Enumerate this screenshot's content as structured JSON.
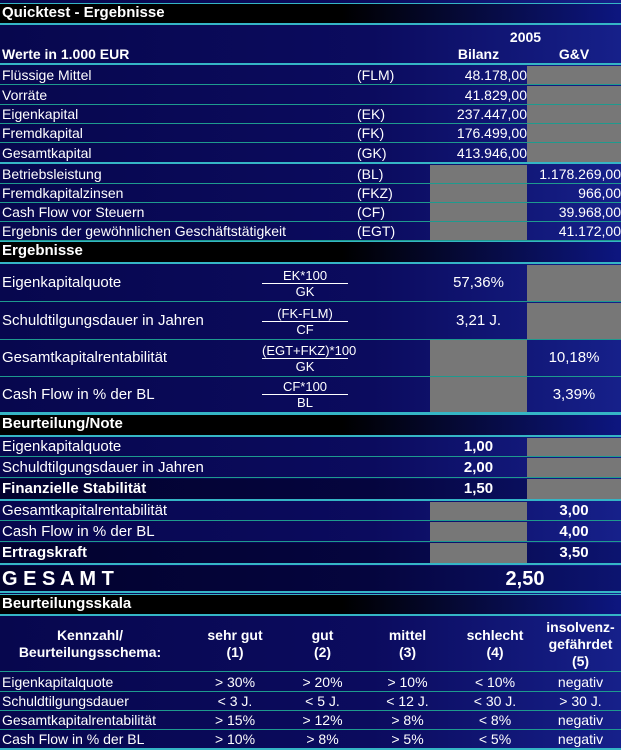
{
  "title": "Quicktest - Ergebnisse",
  "year": "2005",
  "units_label": "Werte in 1.000 EUR",
  "col_bilanz": "Bilanz",
  "col_guv": "G&V",
  "inputs": [
    {
      "label": "Flüssige Mittel",
      "abbr": "(FLM)",
      "bilanz": "48.178,00"
    },
    {
      "label": "Vorräte",
      "abbr": "",
      "bilanz": "41.829,00"
    },
    {
      "label": "Eigenkapital",
      "abbr": "(EK)",
      "bilanz": "237.447,00"
    },
    {
      "label": "Fremdkapital",
      "abbr": "(FK)",
      "bilanz": "176.499,00"
    },
    {
      "label": "Gesamtkapital",
      "abbr": "(GK)",
      "bilanz": "413.946,00"
    },
    {
      "label": "Betriebsleistung",
      "abbr": "(BL)",
      "guv": "1.178.269,00"
    },
    {
      "label": "Fremdkapitalzinsen",
      "abbr": "(FKZ)",
      "guv": "966,00"
    },
    {
      "label": "Cash Flow vor Steuern",
      "abbr": "(CF)",
      "guv": "39.968,00"
    },
    {
      "label": "Ergebnis der gewöhnlichen Geschäftstätigkeit",
      "abbr": "(EGT)",
      "guv": "41.172,00"
    }
  ],
  "ergebnisse_title": "Ergebnisse",
  "ergebnisse": [
    {
      "label": "Eigenkapitalquote",
      "num": "EK*100",
      "den": "GK",
      "bilanz": "57,36%"
    },
    {
      "label": "Schuldtilgungsdauer in Jahren",
      "num": "(FK-FLM)",
      "den": "CF",
      "bilanz": "3,21 J."
    },
    {
      "label": "Gesamtkapitalrentabilität",
      "num": "(EGT+FKZ)*100",
      "den": "GK",
      "guv": "10,18%"
    },
    {
      "label": "Cash Flow in % der BL",
      "num": "CF*100",
      "den": "BL",
      "guv": "3,39%"
    }
  ],
  "beurteilung_title": "Beurteilung/Note",
  "beurteilung": [
    {
      "label": "Eigenkapitalquote",
      "bilanz": "1,00"
    },
    {
      "label": "Schuldtilgungsdauer in Jahren",
      "bilanz": "2,00"
    },
    {
      "label": "Finanzielle Stabilität",
      "bilanz": "1,50"
    },
    {
      "label": "Gesamtkapitalrentabilität",
      "guv": "3,00"
    },
    {
      "label": "Cash Flow in % der BL",
      "guv": "4,00"
    },
    {
      "label": "Ertragskraft",
      "guv": "3,50"
    }
  ],
  "gesamt_label": "G E S A M T",
  "gesamt_value": "2,50",
  "skala_title": "Beurteilungsskala",
  "skala_headers": [
    "Kennzahl/ Beurteilungsschema:",
    "sehr gut (1)",
    "gut (2)",
    "mittel (3)",
    "schlecht (4)",
    "insolvenz-gefährdet (5)"
  ],
  "skala_rows": [
    [
      "Eigenkapitalquote",
      "> 30%",
      "> 20%",
      "> 10%",
      "< 10%",
      "negativ"
    ],
    [
      "Schuldtilgungsdauer",
      "< 3 J.",
      "< 5 J.",
      "< 12 J.",
      "< 30 J.",
      "> 30 J."
    ],
    [
      "Gesamtkapitalrentabilität",
      "> 15%",
      "> 12%",
      "> 8%",
      "< 8%",
      "negativ"
    ],
    [
      "Cash Flow in % der BL",
      "> 10%",
      "> 8%",
      "> 5%",
      "< 5%",
      "negativ"
    ]
  ]
}
